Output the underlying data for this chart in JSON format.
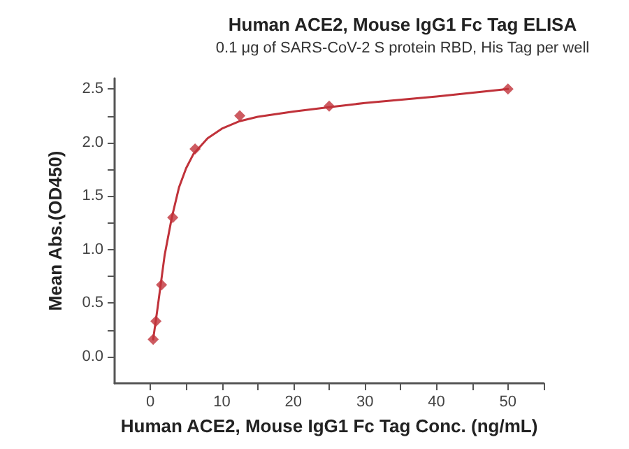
{
  "chart_data": {
    "type": "scatter",
    "title": "Human ACE2, Mouse IgG1 Fc Tag ELISA",
    "subtitle": "0.1 μg of SARS-CoV-2 S protein RBD, His Tag per well",
    "xlabel": "Human ACE2, Mouse IgG1 Fc Tag Conc. (ng/mL)",
    "ylabel": "Mean Abs.(OD450)",
    "series": [
      {
        "marker": "diamond",
        "color": "#c0323a",
        "x": [
          0.39,
          0.78,
          1.56,
          3.125,
          6.25,
          12.5,
          25,
          50
        ],
        "values": [
          0.16,
          0.33,
          0.67,
          1.3,
          1.94,
          2.25,
          2.34,
          2.5
        ]
      },
      {
        "type": "line",
        "marker": "none",
        "line_style": "solid",
        "color": "#c0323a",
        "x": [
          0.39,
          1,
          2,
          3,
          4,
          5,
          6,
          8,
          10,
          12.5,
          15,
          20,
          25,
          30,
          40,
          50
        ],
        "values": [
          0.16,
          0.45,
          0.95,
          1.3,
          1.58,
          1.76,
          1.89,
          2.04,
          2.13,
          2.2,
          2.24,
          2.29,
          2.33,
          2.37,
          2.43,
          2.5
        ]
      }
    ],
    "xlim": [
      -5,
      55
    ],
    "xticks": [
      0,
      {
        "value": 5,
        "label": null
      },
      10,
      {
        "value": 15,
        "label": null
      },
      20,
      {
        "value": 25,
        "label": null
      },
      30,
      {
        "value": 35,
        "label": null
      },
      40,
      {
        "value": 45,
        "label": null
      },
      50,
      {
        "value": 55,
        "label": null
      }
    ],
    "ylim": [
      -0.25,
      2.6
    ],
    "yticks": [
      {
        "value": 0,
        "label": "0.0"
      },
      {
        "value": 0.25,
        "label": null
      },
      {
        "value": 0.5,
        "label": "0.5"
      },
      {
        "value": 0.75,
        "label": null
      },
      {
        "value": 1,
        "label": "1.0"
      },
      {
        "value": 1.25,
        "label": null
      },
      {
        "value": 1.5,
        "label": "1.5"
      },
      {
        "value": 1.75,
        "label": null
      },
      {
        "value": 2,
        "label": "2.0"
      },
      {
        "value": 2.25,
        "label": null
      },
      {
        "value": 2.5,
        "label": "2.5"
      }
    ],
    "grid": false
  }
}
